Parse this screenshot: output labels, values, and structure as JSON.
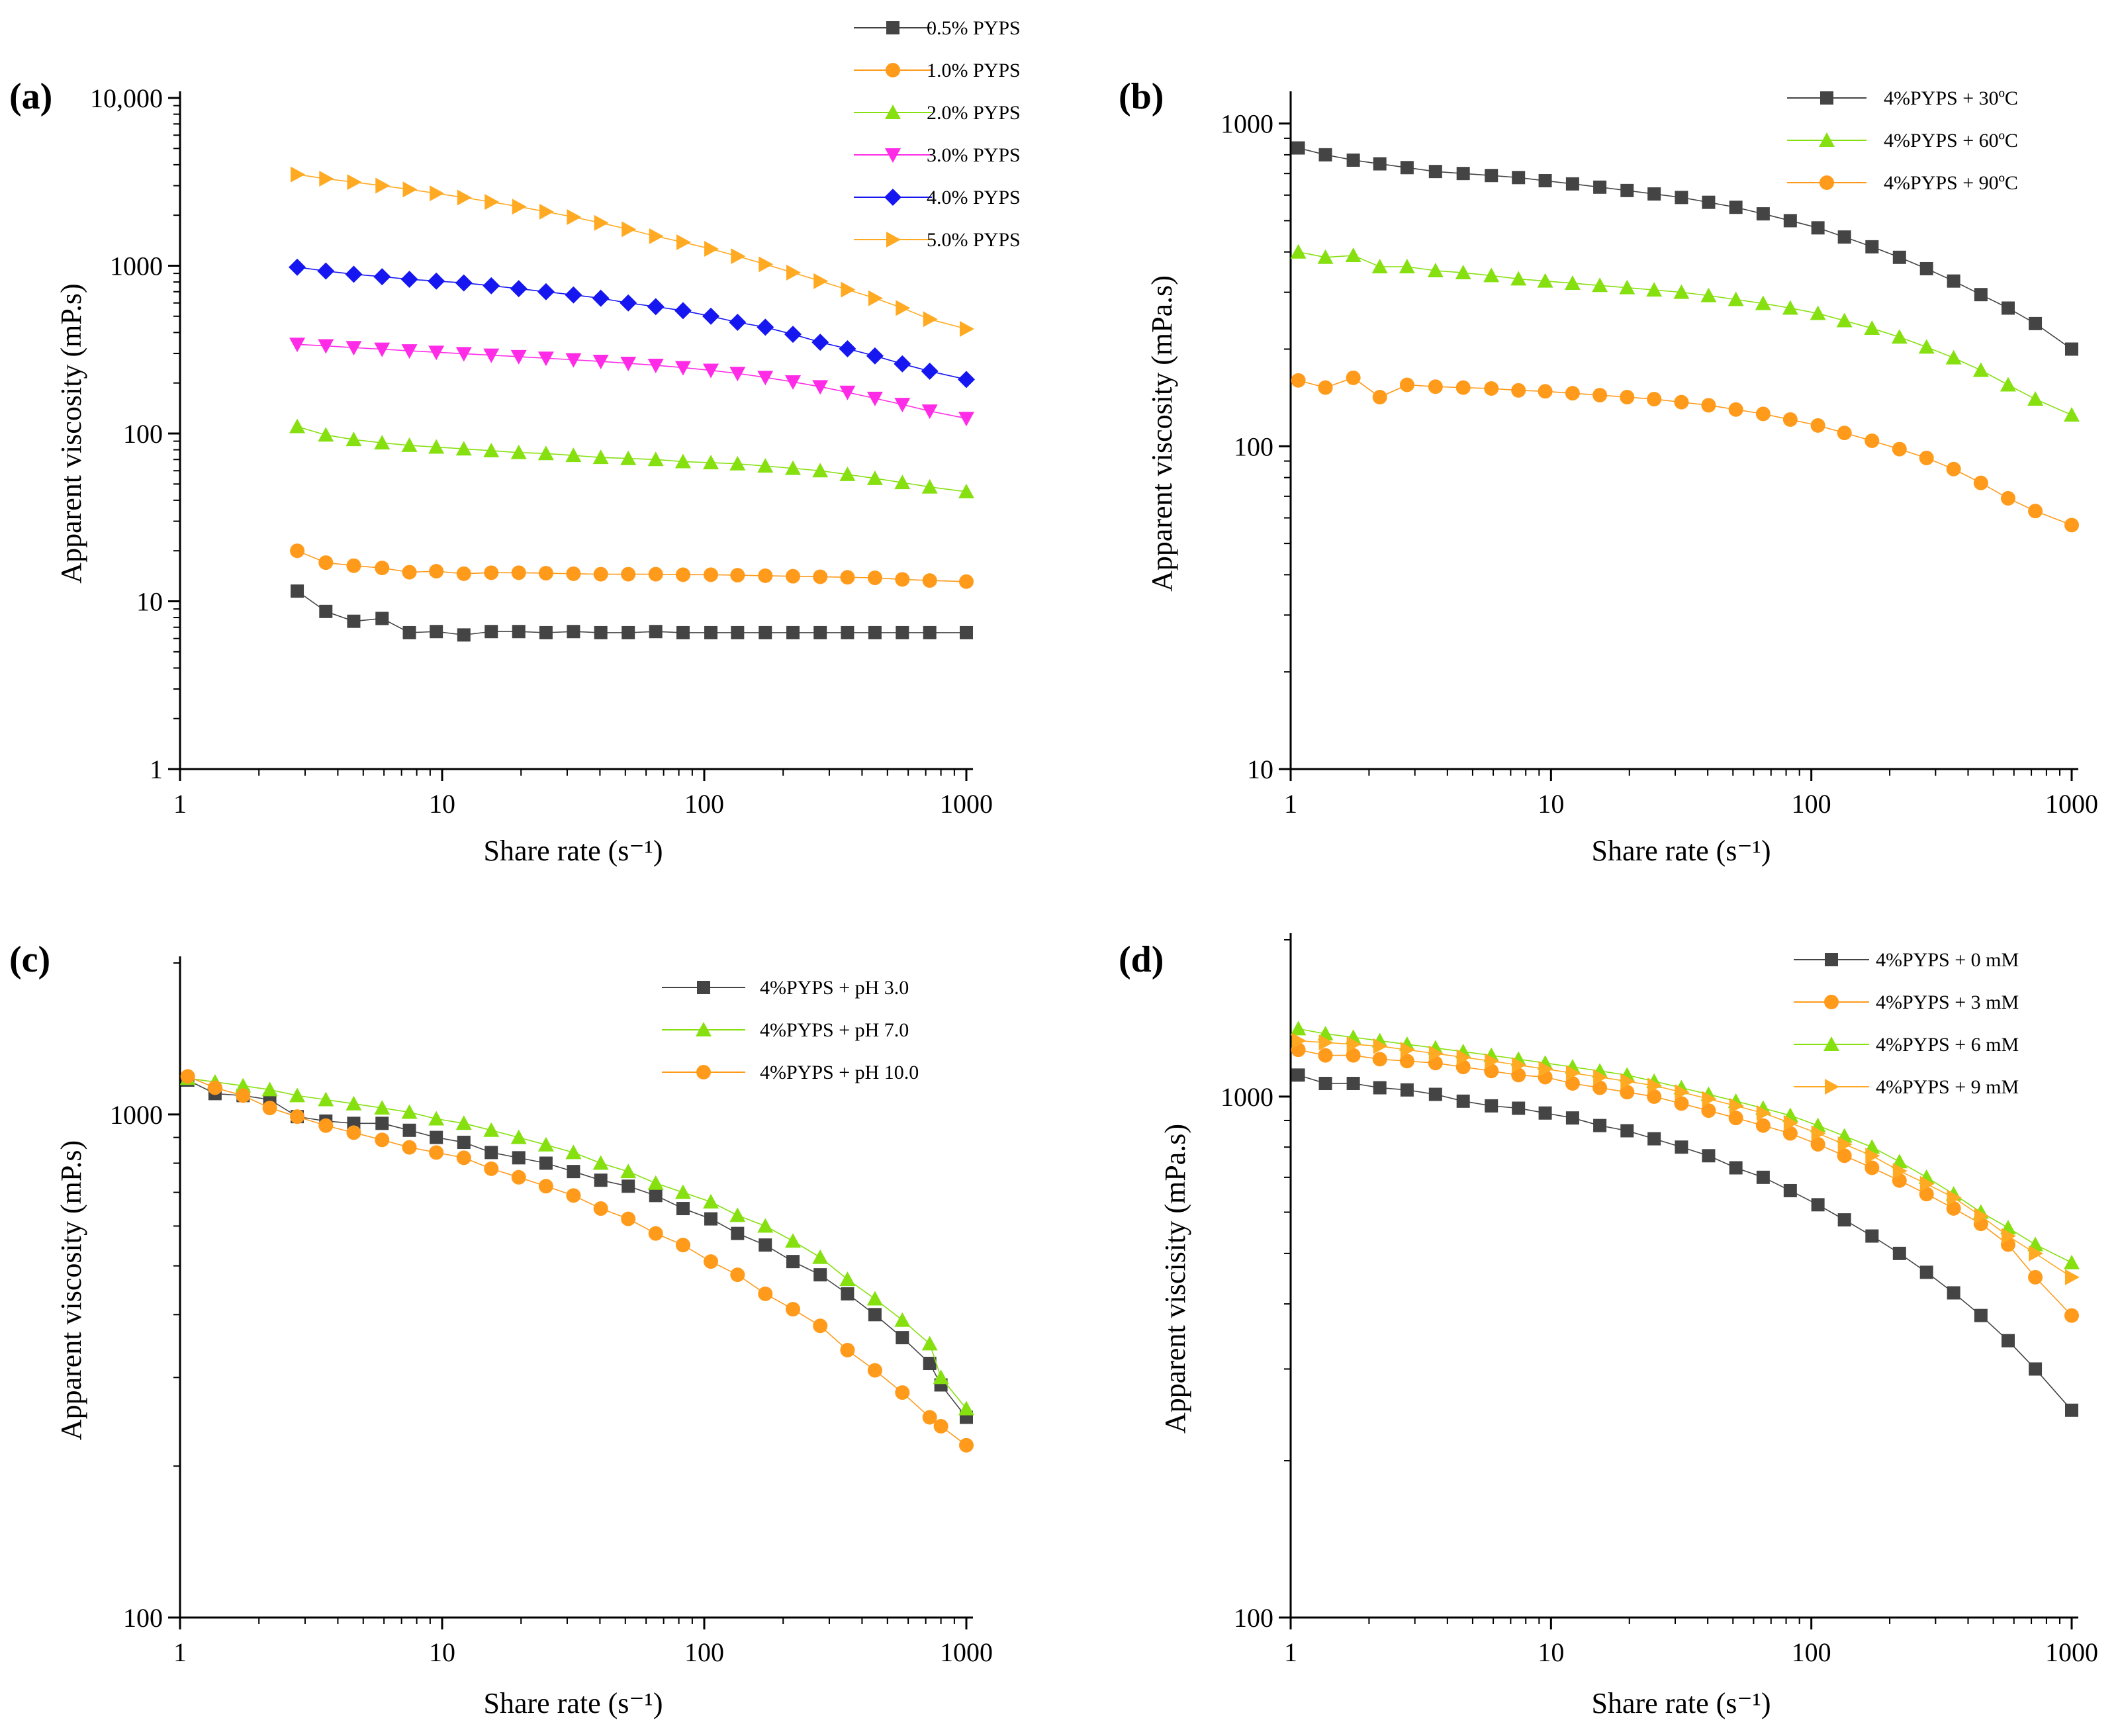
{
  "colors": {
    "black": "#444444",
    "orange": "#FF9A1A",
    "green": "#86E010",
    "magenta": "#FF2BE6",
    "blue": "#1616F0",
    "gold": "#FFAA22"
  },
  "chart_data": [
    {
      "panel": "(a)",
      "type": "line",
      "xscale": "log",
      "yscale": "log",
      "xlabel": "Share rate (s⁻¹)",
      "ylabel": "Apparent viscosity (mP.s)",
      "xlim": [
        1,
        1000
      ],
      "ylim": [
        1,
        10000
      ],
      "xticks": [
        1,
        10,
        100,
        1000
      ],
      "xtick_labels": [
        "1",
        "10",
        "100",
        "1000"
      ],
      "yticks": [
        1,
        10,
        100,
        1000,
        10000
      ],
      "ytick_labels": [
        "1",
        "10",
        "100",
        "1000",
        "10,000"
      ],
      "legend_position": "top-right, above plot",
      "x": [
        2.8,
        3.6,
        4.6,
        5.9,
        7.5,
        9.5,
        12.1,
        15.4,
        19.6,
        24.9,
        31.7,
        40.3,
        51.3,
        65.3,
        83,
        106,
        134,
        171,
        218,
        277,
        352,
        448,
        570,
        725,
        1000
      ],
      "series": [
        {
          "name": "0.5% PYPS",
          "marker": "square",
          "color": "#444444",
          "values": [
            11.5,
            8.7,
            7.6,
            7.9,
            6.5,
            6.6,
            6.3,
            6.6,
            6.6,
            6.5,
            6.6,
            6.5,
            6.5,
            6.6,
            6.5,
            6.5,
            6.5,
            6.5,
            6.5,
            6.5,
            6.5,
            6.5,
            6.5,
            6.5,
            6.5
          ]
        },
        {
          "name": "1.0% PYPS",
          "marker": "circle",
          "color": "#FF9A1A",
          "values": [
            20,
            17,
            16.3,
            15.8,
            14.9,
            15.1,
            14.6,
            14.8,
            14.8,
            14.7,
            14.6,
            14.5,
            14.5,
            14.5,
            14.4,
            14.4,
            14.3,
            14.2,
            14.1,
            14,
            13.9,
            13.8,
            13.5,
            13.3,
            13.1
          ]
        },
        {
          "name": "2.0% PYPS",
          "marker": "triangle-up",
          "color": "#86E010",
          "values": [
            110,
            98,
            92,
            88,
            85,
            83,
            81,
            79,
            77,
            76,
            74,
            72,
            71,
            70,
            68,
            67,
            66,
            64,
            62,
            60,
            57,
            54,
            51,
            48,
            45
          ]
        },
        {
          "name": "3.0% PYPS",
          "marker": "triangle-down",
          "color": "#FF2BE6",
          "values": [
            340,
            333,
            325,
            318,
            311,
            305,
            299,
            293,
            287,
            281,
            275,
            269,
            262,
            255,
            247,
            238,
            228,
            216,
            203,
            190,
            176,
            162,
            149,
            136,
            123
          ]
        },
        {
          "name": "4.0% PYPS",
          "marker": "diamond",
          "color": "#1616F0",
          "values": [
            980,
            930,
            890,
            860,
            830,
            810,
            790,
            760,
            730,
            700,
            670,
            640,
            600,
            570,
            540,
            500,
            460,
            430,
            390,
            350,
            320,
            290,
            260,
            235,
            210
          ]
        },
        {
          "name": "5.0% PYPS",
          "marker": "triangle-right",
          "color": "#FFAA22",
          "values": [
            3500,
            3300,
            3150,
            3000,
            2850,
            2700,
            2550,
            2400,
            2250,
            2100,
            1950,
            1800,
            1650,
            1500,
            1380,
            1260,
            1140,
            1020,
            910,
            810,
            720,
            640,
            560,
            480,
            420
          ]
        }
      ]
    },
    {
      "panel": "(b)",
      "type": "line",
      "xscale": "log",
      "yscale": "log",
      "xlabel": "Share rate (s⁻¹)",
      "ylabel": "Apparent viscosity (mPa.s)",
      "xlim": [
        1,
        1000
      ],
      "ylim": [
        10,
        1200
      ],
      "xticks": [
        1,
        10,
        100,
        1000
      ],
      "xtick_labels": [
        "1",
        "10",
        "100",
        "1000"
      ],
      "yticks": [
        10,
        100,
        1000
      ],
      "ytick_labels": [
        "10",
        "100",
        "1000"
      ],
      "legend_position": "top-right",
      "x": [
        1.07,
        1.36,
        1.74,
        2.2,
        2.8,
        3.6,
        4.6,
        5.9,
        7.5,
        9.5,
        12.1,
        15.4,
        19.6,
        24.9,
        31.7,
        40.3,
        51.3,
        65.3,
        83,
        106,
        134,
        171,
        218,
        277,
        352,
        448,
        570,
        725,
        1000
      ],
      "series": [
        {
          "name": "4%PYPS + 30ºC",
          "marker": "square",
          "color": "#444444",
          "values": [
            840,
            800,
            770,
            750,
            730,
            710,
            700,
            690,
            680,
            665,
            650,
            635,
            620,
            605,
            590,
            570,
            550,
            525,
            500,
            475,
            445,
            415,
            385,
            355,
            325,
            295,
            268,
            240,
            200
          ]
        },
        {
          "name": "4%PYPS + 60ºC",
          "marker": "triangle-up",
          "color": "#86E010",
          "values": [
            400,
            385,
            390,
            360,
            360,
            350,
            345,
            338,
            330,
            325,
            320,
            315,
            310,
            305,
            300,
            293,
            285,
            277,
            268,
            258,
            245,
            232,
            218,
            203,
            188,
            172,
            155,
            140,
            125
          ]
        },
        {
          "name": "4%PYPS + 90ºC",
          "marker": "circle",
          "color": "#FF9A1A",
          "values": [
            160,
            152,
            163,
            142,
            155,
            153,
            152,
            151,
            149,
            148,
            146,
            144,
            142,
            140,
            137,
            134,
            130,
            126,
            121,
            116,
            110,
            104,
            98,
            92,
            85,
            77,
            69,
            63,
            57
          ]
        }
      ]
    },
    {
      "panel": "(c)",
      "type": "line",
      "xscale": "log",
      "yscale": "log",
      "xlabel": "Share rate (s⁻¹)",
      "ylabel": "Apparent viscosity (mP.s)",
      "xlim": [
        1,
        1000
      ],
      "ylim": [
        100,
        2000
      ],
      "xticks": [
        1,
        10,
        100,
        1000
      ],
      "xtick_labels": [
        "1",
        "10",
        "100",
        "1000"
      ],
      "yticks": [
        100,
        1000
      ],
      "ytick_labels": [
        "100",
        "1000"
      ],
      "legend_position": "top-right",
      "x": [
        1.07,
        1.36,
        1.74,
        2.2,
        2.8,
        3.6,
        4.6,
        5.9,
        7.5,
        9.5,
        12.1,
        15.4,
        19.6,
        24.9,
        31.7,
        40.3,
        51.3,
        65.3,
        83,
        106,
        134,
        171,
        218,
        277,
        352,
        448,
        570,
        725,
        800,
        1000
      ],
      "x_pH3": [
        1.07,
        1.36,
        1.74,
        2.2,
        2.8,
        3.6,
        4.6,
        5.9,
        7.5,
        9.5,
        12.1,
        15.4,
        19.6,
        24.9,
        31.7,
        40.3,
        51.3,
        65.3,
        83,
        106,
        134,
        171,
        218,
        277,
        352,
        448,
        570,
        725,
        800,
        1000
      ],
      "series": [
        {
          "name": "4%PYPS + pH 3.0",
          "marker": "square",
          "color": "#444444",
          "values": [
            1170,
            1100,
            1090,
            1070,
            990,
            970,
            960,
            960,
            930,
            900,
            880,
            840,
            820,
            800,
            770,
            740,
            720,
            690,
            650,
            620,
            580,
            550,
            510,
            480,
            440,
            400,
            360,
            320,
            290,
            250
          ]
        },
        {
          "name": "4%PYPS + pH 7.0",
          "marker": "triangle-up",
          "color": "#86E010",
          "values": [
            1180,
            1160,
            1140,
            1120,
            1090,
            1070,
            1050,
            1030,
            1010,
            980,
            960,
            930,
            900,
            870,
            840,
            800,
            770,
            730,
            700,
            670,
            630,
            600,
            560,
            520,
            470,
            430,
            390,
            350,
            300,
            260
          ]
        },
        {
          "name": "4%PYPS + pH 10.0",
          "marker": "circle",
          "color": "#FF9A1A",
          "values": [
            1190,
            1130,
            1090,
            1030,
            990,
            950,
            920,
            890,
            860,
            840,
            820,
            780,
            750,
            720,
            690,
            650,
            620,
            580,
            550,
            510,
            480,
            440,
            410,
            380,
            340,
            310,
            280,
            250,
            240,
            220
          ]
        }
      ]
    },
    {
      "panel": "(d)",
      "type": "line",
      "xscale": "log",
      "yscale": "log",
      "xlabel": "Share rate (s⁻¹)",
      "ylabel": "Apparent viscisity (mPa.s)",
      "xlim": [
        1,
        1000
      ],
      "ylim": [
        100,
        2000
      ],
      "xticks": [
        1,
        10,
        100,
        1000
      ],
      "xtick_labels": [
        "1",
        "10",
        "100",
        "1000"
      ],
      "yticks": [
        100,
        1000
      ],
      "ytick_labels": [
        "100",
        "1000"
      ],
      "legend_position": "top-right",
      "x": [
        1.07,
        1.36,
        1.74,
        2.2,
        2.8,
        3.6,
        4.6,
        5.9,
        7.5,
        9.5,
        12.1,
        15.4,
        19.6,
        24.9,
        31.7,
        40.3,
        51.3,
        65.3,
        83,
        106,
        134,
        171,
        218,
        277,
        352,
        448,
        570,
        725,
        1000
      ],
      "series": [
        {
          "name": "4%PYPS + 0 mM",
          "marker": "square",
          "color": "#444444",
          "values": [
            1100,
            1060,
            1060,
            1040,
            1030,
            1010,
            980,
            960,
            950,
            930,
            910,
            880,
            860,
            830,
            800,
            770,
            730,
            700,
            660,
            620,
            580,
            540,
            500,
            460,
            420,
            380,
            340,
            300,
            250
          ]
        },
        {
          "name": "4%PYPS + 3 mM",
          "marker": "circle",
          "color": "#FF9A1A",
          "values": [
            1230,
            1200,
            1200,
            1180,
            1170,
            1160,
            1140,
            1120,
            1100,
            1090,
            1060,
            1040,
            1020,
            1000,
            970,
            940,
            910,
            880,
            850,
            810,
            770,
            730,
            690,
            650,
            610,
            570,
            520,
            450,
            380
          ]
        },
        {
          "name": "4%PYPS + 6 mM",
          "marker": "triangle-up",
          "color": "#86E010",
          "values": [
            1350,
            1320,
            1300,
            1280,
            1260,
            1240,
            1220,
            1200,
            1180,
            1160,
            1140,
            1120,
            1100,
            1070,
            1040,
            1010,
            980,
            950,
            920,
            880,
            840,
            800,
            750,
            700,
            650,
            600,
            560,
            520,
            480
          ]
        },
        {
          "name": "4%PYPS + 9 mM",
          "marker": "triangle-right",
          "color": "#FFAA22",
          "values": [
            1280,
            1270,
            1260,
            1250,
            1230,
            1210,
            1190,
            1170,
            1150,
            1130,
            1110,
            1090,
            1070,
            1050,
            1020,
            990,
            960,
            930,
            890,
            850,
            810,
            770,
            720,
            680,
            640,
            590,
            540,
            500,
            450
          ]
        }
      ]
    }
  ]
}
